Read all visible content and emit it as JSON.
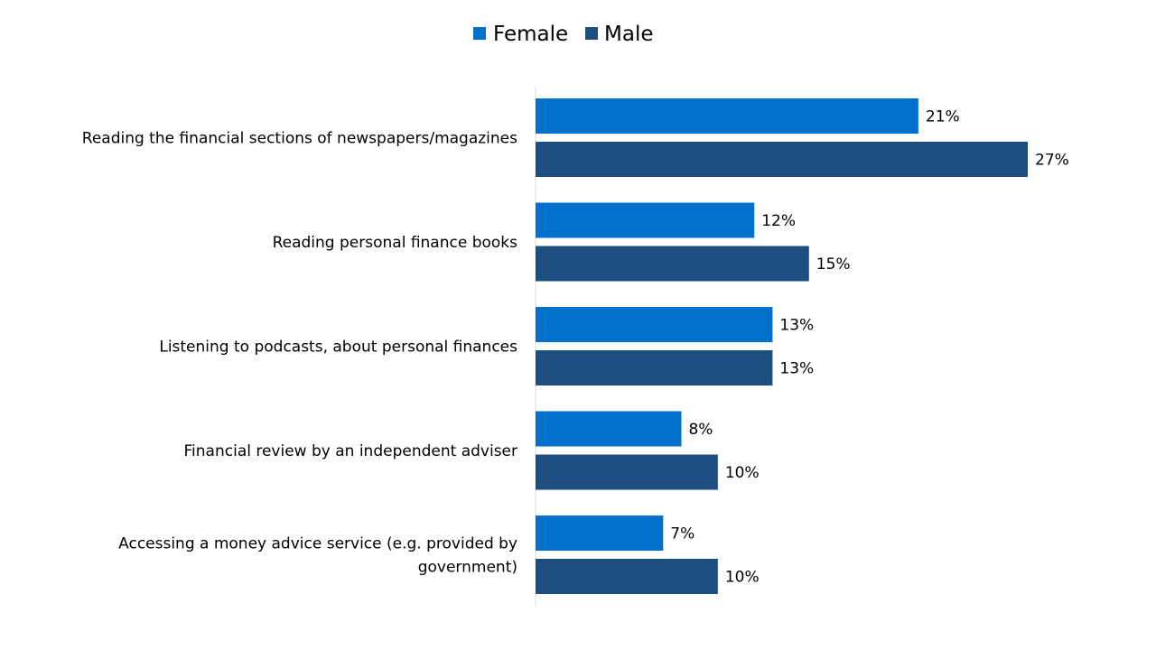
{
  "chart_data": {
    "type": "bar",
    "orientation": "horizontal",
    "categories": [
      [
        "Reading the financial sections of newspapers/magazines"
      ],
      [
        "Reading personal finance books"
      ],
      [
        "Listening to podcasts, about personal finances"
      ],
      [
        "Financial review by an independent adviser"
      ],
      [
        "Accessing a money advice service (e.g. provided by",
        "government)"
      ]
    ],
    "series": [
      {
        "name": "Female",
        "color": "#0070CC",
        "values": [
          21,
          12,
          13,
          8,
          7
        ],
        "labels": [
          "21%",
          "12%",
          "13%",
          "8%",
          "7%"
        ]
      },
      {
        "name": "Male",
        "color": "#1C4E80",
        "values": [
          27,
          15,
          13,
          10,
          10
        ],
        "labels": [
          "27%",
          "15%",
          "13%",
          "10%",
          "10%"
        ]
      }
    ],
    "xlim": [
      0,
      30
    ],
    "unit": "%",
    "grid": false,
    "legend_position": "top-center",
    "title": "",
    "xlabel": "",
    "ylabel": ""
  }
}
